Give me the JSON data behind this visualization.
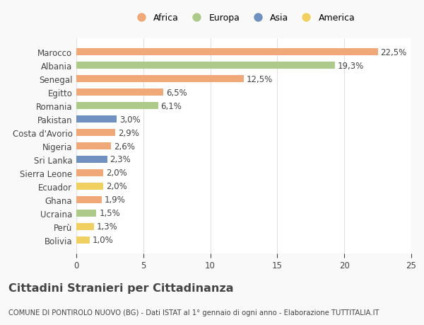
{
  "countries": [
    "Bolivia",
    "Perù",
    "Ucraina",
    "Ghana",
    "Ecuador",
    "Sierra Leone",
    "Sri Lanka",
    "Nigeria",
    "Costa d'Avorio",
    "Pakistan",
    "Romania",
    "Egitto",
    "Senegal",
    "Albania",
    "Marocco"
  ],
  "values": [
    1.0,
    1.3,
    1.5,
    1.9,
    2.0,
    2.0,
    2.3,
    2.6,
    2.9,
    3.0,
    6.1,
    6.5,
    12.5,
    19.3,
    22.5
  ],
  "continents": [
    "America",
    "America",
    "Europa",
    "Africa",
    "America",
    "Africa",
    "Asia",
    "Africa",
    "Africa",
    "Asia",
    "Europa",
    "Africa",
    "Africa",
    "Europa",
    "Africa"
  ],
  "labels": [
    "1,0%",
    "1,3%",
    "1,5%",
    "1,9%",
    "2,0%",
    "2,0%",
    "2,3%",
    "2,6%",
    "2,9%",
    "3,0%",
    "6,1%",
    "6,5%",
    "12,5%",
    "19,3%",
    "22,5%"
  ],
  "continent_colors": {
    "Africa": "#F0A878",
    "Europa": "#AECA8A",
    "Asia": "#7090C0",
    "America": "#F0D060"
  },
  "legend_order": [
    "Africa",
    "Europa",
    "Asia",
    "America"
  ],
  "title": "Cittadini Stranieri per Cittadinanza",
  "subtitle": "COMUNE DI PONTIROLO NUOVO (BG) - Dati ISTAT al 1° gennaio di ogni anno - Elaborazione TUTTITALIA.IT",
  "xlim": [
    0,
    25
  ],
  "xticks": [
    0,
    5,
    10,
    15,
    20,
    25
  ],
  "background_color": "#f9f9f9",
  "bar_background": "#ffffff",
  "grid_color": "#e0e0e0",
  "text_color": "#444444",
  "bar_label_fontsize": 8.5,
  "axis_fontsize": 8.5,
  "title_fontsize": 11.5,
  "subtitle_fontsize": 7.2,
  "legend_fontsize": 9
}
